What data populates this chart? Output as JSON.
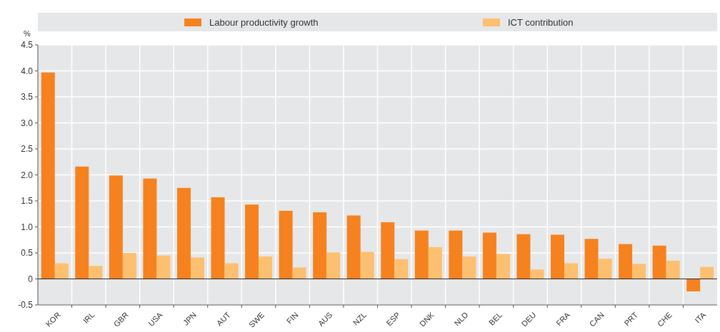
{
  "chart_data": {
    "type": "bar",
    "ylabel": "%",
    "categories": [
      "KOR",
      "IRL",
      "GBR",
      "USA",
      "JPN",
      "AUT",
      "SWE",
      "FIN",
      "AUS",
      "NZL",
      "ESP",
      "DNK",
      "NLD",
      "BEL",
      "DEU",
      "FRA",
      "CAN",
      "PRT",
      "CHE",
      "ITA"
    ],
    "series": [
      {
        "name": "Labour productivity growth",
        "color": "#f5821f",
        "values": [
          3.97,
          2.16,
          1.99,
          1.93,
          1.75,
          1.57,
          1.43,
          1.31,
          1.28,
          1.22,
          1.09,
          0.93,
          0.93,
          0.89,
          0.86,
          0.85,
          0.77,
          0.67,
          0.64,
          -0.24
        ]
      },
      {
        "name": "ICT contribution",
        "color": "#fdbf70",
        "values": [
          0.3,
          0.25,
          0.5,
          0.45,
          0.41,
          0.3,
          0.43,
          0.22,
          0.51,
          0.52,
          0.38,
          0.61,
          0.43,
          0.48,
          0.18,
          0.3,
          0.39,
          0.29,
          0.35,
          0.23
        ]
      }
    ],
    "ylim": [
      -0.5,
      4.5
    ],
    "yticks": [
      {
        "value": -0.5,
        "label": "-0.5"
      },
      {
        "value": 0,
        "label": "0"
      },
      {
        "value": 0.5,
        "label": "0.5"
      },
      {
        "value": 1,
        "label": "1.0"
      },
      {
        "value": 1.5,
        "label": "1.5"
      },
      {
        "value": 2,
        "label": "2.0"
      },
      {
        "value": 2.5,
        "label": "2.5"
      },
      {
        "value": 3,
        "label": "3.0"
      },
      {
        "value": 3.5,
        "label": "3.5"
      },
      {
        "value": 4,
        "label": "4.0"
      },
      {
        "value": 4.5,
        "label": "4.5"
      }
    ],
    "grid": true,
    "legend": "top"
  }
}
